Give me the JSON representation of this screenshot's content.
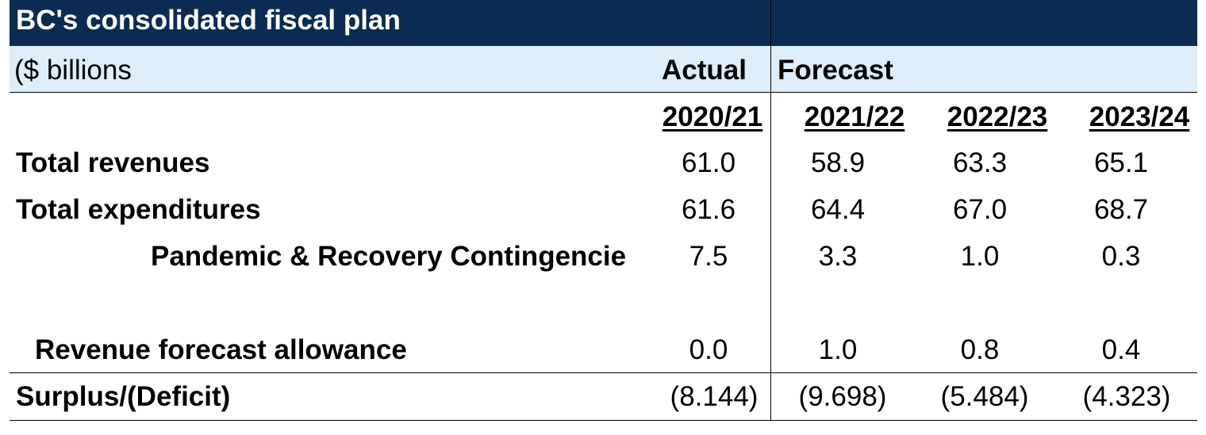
{
  "table": {
    "title": "BC's consolidated fiscal plan",
    "units": "($ billions",
    "actual_label": "Actual",
    "forecast_label": "Forecast",
    "years": [
      "2020/21",
      "2021/22",
      "2022/23",
      "2023/24"
    ],
    "rows": [
      {
        "label": "Total revenues",
        "values": [
          "61.0",
          "58.9",
          "63.3",
          "65.1"
        ]
      },
      {
        "label": "Total expenditures",
        "values": [
          "61.6",
          "64.4",
          "67.0",
          "68.7"
        ]
      },
      {
        "label": "Pandemic & Recovery Contingencie",
        "values": [
          "7.5",
          "3.3",
          "1.0",
          "0.3"
        ]
      },
      {
        "label": "Revenue forecast allowance",
        "values": [
          "0.0",
          "1.0",
          "0.8",
          "0.4"
        ]
      },
      {
        "label": "Surplus/(Deficit)",
        "values": [
          "(8.144)",
          "(9.698)",
          "(5.484)",
          "(4.323)"
        ]
      }
    ]
  }
}
